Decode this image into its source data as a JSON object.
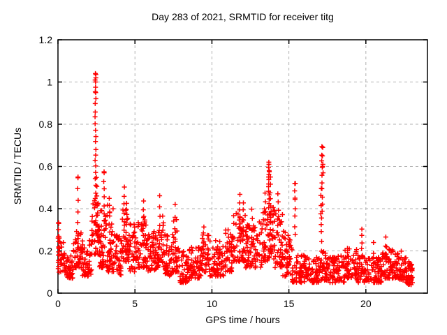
{
  "chart_data": {
    "type": "scatter",
    "title": "Day 283 of 2021, SRMTID for receiver titg",
    "xlabel": "GPS time / hours",
    "ylabel": "SRMTID / TECUs",
    "xlim": [
      0,
      24
    ],
    "ylim": [
      0,
      1.2
    ],
    "xticks": [
      0,
      5,
      10,
      15,
      20
    ],
    "xtick_labels": [
      "0",
      "5",
      "10",
      "15",
      "20"
    ],
    "yticks": [
      0,
      0.2,
      0.4,
      0.6,
      0.8,
      1.0,
      1.2
    ],
    "ytick_labels": [
      "0",
      "0.2",
      "0.4",
      "0.6",
      "0.8",
      "1",
      "1.2"
    ],
    "grid": true,
    "grid_color": "#b0b0b0",
    "border_color": "#000000",
    "marker": {
      "shape": "plus",
      "color": "#ff0000",
      "size": 7,
      "stroke_width": 1.5
    },
    "legend": "none",
    "series_name": "SRMTID",
    "peaks": [
      [
        2.43,
        1.04
      ],
      [
        2.46,
        1.02
      ],
      [
        2.44,
        1.0
      ],
      [
        2.45,
        0.95
      ],
      [
        0.05,
        0.33
      ],
      [
        1.3,
        0.55
      ],
      [
        3.0,
        0.57
      ],
      [
        13.7,
        0.61
      ],
      [
        13.72,
        0.58
      ],
      [
        13.68,
        0.55
      ],
      [
        17.2,
        0.69
      ],
      [
        17.18,
        0.65
      ],
      [
        17.21,
        0.61
      ],
      [
        17.19,
        0.6
      ],
      [
        17.22,
        0.57
      ],
      [
        15.42,
        0.52
      ],
      [
        15.4,
        0.45
      ]
    ],
    "spike_columns": [
      [
        0.05,
        0.1,
        0.33,
        9
      ],
      [
        1.3,
        0.28,
        0.55,
        6
      ],
      [
        2.44,
        0.42,
        1.04,
        22
      ],
      [
        2.52,
        0.28,
        0.55,
        7
      ],
      [
        3.0,
        0.3,
        0.57,
        8
      ],
      [
        3.35,
        0.25,
        0.45,
        6
      ],
      [
        4.3,
        0.3,
        0.5,
        6
      ],
      [
        4.45,
        0.25,
        0.42,
        5
      ],
      [
        5.55,
        0.27,
        0.44,
        5
      ],
      [
        6.6,
        0.27,
        0.46,
        5
      ],
      [
        7.6,
        0.25,
        0.42,
        4
      ],
      [
        9.45,
        0.22,
        0.31,
        4
      ],
      [
        11.8,
        0.28,
        0.47,
        6
      ],
      [
        12.05,
        0.27,
        0.43,
        5
      ],
      [
        12.6,
        0.26,
        0.4,
        4
      ],
      [
        13.45,
        0.3,
        0.47,
        5
      ],
      [
        13.7,
        0.4,
        0.62,
        12
      ],
      [
        13.8,
        0.3,
        0.55,
        8
      ],
      [
        13.98,
        0.26,
        0.4,
        5
      ],
      [
        14.3,
        0.28,
        0.47,
        6
      ],
      [
        15.4,
        0.28,
        0.52,
        7
      ],
      [
        17.15,
        0.36,
        0.69,
        11
      ],
      [
        17.1,
        0.2,
        0.5,
        8
      ],
      [
        19.75,
        0.18,
        0.3,
        5
      ],
      [
        20.5,
        0.14,
        0.24,
        3
      ],
      [
        21.3,
        0.15,
        0.26,
        4
      ]
    ],
    "noise_bands": [
      [
        0.0,
        0.5,
        0.1,
        0.28,
        40
      ],
      [
        0.5,
        1.0,
        0.07,
        0.18,
        40
      ],
      [
        1.0,
        1.6,
        0.12,
        0.3,
        48
      ],
      [
        1.6,
        2.2,
        0.08,
        0.25,
        48
      ],
      [
        2.2,
        2.7,
        0.18,
        0.45,
        45
      ],
      [
        2.7,
        3.2,
        0.12,
        0.4,
        42
      ],
      [
        3.2,
        3.7,
        0.1,
        0.42,
        42
      ],
      [
        3.7,
        4.1,
        0.08,
        0.3,
        36
      ],
      [
        4.1,
        4.6,
        0.15,
        0.42,
        42
      ],
      [
        4.6,
        5.1,
        0.1,
        0.33,
        40
      ],
      [
        5.1,
        5.8,
        0.12,
        0.38,
        55
      ],
      [
        5.8,
        6.4,
        0.1,
        0.3,
        45
      ],
      [
        6.4,
        6.9,
        0.12,
        0.38,
        40
      ],
      [
        6.9,
        7.4,
        0.08,
        0.28,
        40
      ],
      [
        7.4,
        7.9,
        0.1,
        0.35,
        40
      ],
      [
        7.9,
        8.5,
        0.05,
        0.2,
        45
      ],
      [
        8.5,
        9.3,
        0.07,
        0.22,
        58
      ],
      [
        9.3,
        9.8,
        0.1,
        0.28,
        38
      ],
      [
        9.8,
        10.8,
        0.08,
        0.25,
        70
      ],
      [
        10.8,
        11.4,
        0.1,
        0.3,
        44
      ],
      [
        11.4,
        12.2,
        0.15,
        0.38,
        60
      ],
      [
        12.2,
        13.3,
        0.12,
        0.35,
        80
      ],
      [
        13.3,
        13.6,
        0.15,
        0.4,
        24
      ],
      [
        13.6,
        14.1,
        0.15,
        0.4,
        36
      ],
      [
        14.1,
        14.6,
        0.12,
        0.38,
        36
      ],
      [
        14.6,
        15.2,
        0.08,
        0.3,
        44
      ],
      [
        15.2,
        16.2,
        0.05,
        0.18,
        72
      ],
      [
        16.2,
        17.0,
        0.05,
        0.17,
        56
      ],
      [
        17.0,
        17.6,
        0.06,
        0.2,
        42
      ],
      [
        17.6,
        18.6,
        0.05,
        0.18,
        70
      ],
      [
        18.6,
        19.4,
        0.07,
        0.22,
        56
      ],
      [
        19.4,
        20.0,
        0.05,
        0.18,
        42
      ],
      [
        20.0,
        21.0,
        0.05,
        0.18,
        70
      ],
      [
        21.0,
        21.8,
        0.07,
        0.22,
        56
      ],
      [
        21.8,
        22.6,
        0.06,
        0.2,
        56
      ],
      [
        22.6,
        23.05,
        0.04,
        0.15,
        40
      ]
    ],
    "seed": 20211283
  }
}
